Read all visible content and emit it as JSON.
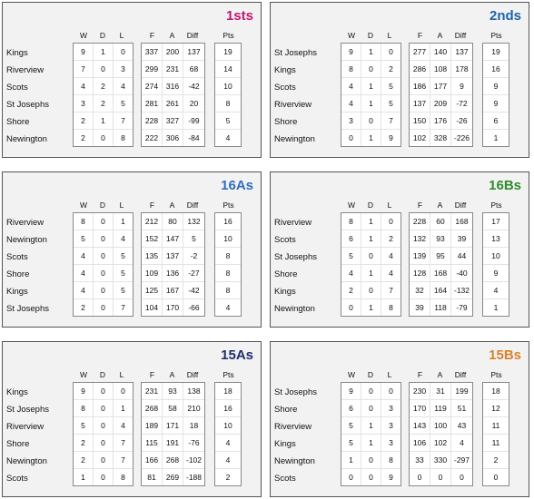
{
  "headers": {
    "w": "W",
    "d": "D",
    "l": "L",
    "f": "F",
    "a": "A",
    "diff": "Diff",
    "pts": "Pts"
  },
  "tables": [
    {
      "title": "1sts",
      "color": "#c0186f",
      "rows": [
        {
          "team": "Kings",
          "w": "9",
          "d": "1",
          "l": "0",
          "f": "337",
          "a": "200",
          "diff": "137",
          "pts": "19"
        },
        {
          "team": "Riverview",
          "w": "7",
          "d": "0",
          "l": "3",
          "f": "299",
          "a": "231",
          "diff": "68",
          "pts": "14"
        },
        {
          "team": "Scots",
          "w": "4",
          "d": "2",
          "l": "4",
          "f": "274",
          "a": "316",
          "diff": "-42",
          "pts": "10"
        },
        {
          "team": "St Josephs",
          "w": "3",
          "d": "2",
          "l": "5",
          "f": "281",
          "a": "261",
          "diff": "20",
          "pts": "8"
        },
        {
          "team": "Shore",
          "w": "2",
          "d": "1",
          "l": "7",
          "f": "228",
          "a": "327",
          "diff": "-99",
          "pts": "5"
        },
        {
          "team": "Newington",
          "w": "2",
          "d": "0",
          "l": "8",
          "f": "222",
          "a": "306",
          "diff": "-84",
          "pts": "4"
        }
      ]
    },
    {
      "title": "2nds",
      "color": "#1f63a8",
      "rows": [
        {
          "team": "St Josephs",
          "w": "9",
          "d": "1",
          "l": "0",
          "f": "277",
          "a": "140",
          "diff": "137",
          "pts": "19"
        },
        {
          "team": "Kings",
          "w": "8",
          "d": "0",
          "l": "2",
          "f": "286",
          "a": "108",
          "diff": "178",
          "pts": "16"
        },
        {
          "team": "Scots",
          "w": "4",
          "d": "1",
          "l": "5",
          "f": "186",
          "a": "177",
          "diff": "9",
          "pts": "9"
        },
        {
          "team": "Riverview",
          "w": "4",
          "d": "1",
          "l": "5",
          "f": "137",
          "a": "209",
          "diff": "-72",
          "pts": "9"
        },
        {
          "team": "Shore",
          "w": "3",
          "d": "0",
          "l": "7",
          "f": "150",
          "a": "176",
          "diff": "-26",
          "pts": "6"
        },
        {
          "team": "Newington",
          "w": "0",
          "d": "1",
          "l": "9",
          "f": "102",
          "a": "328",
          "diff": "-226",
          "pts": "1"
        }
      ]
    },
    {
      "title": "16As",
      "color": "#2d6fbe",
      "rows": [
        {
          "team": "Riverview",
          "w": "8",
          "d": "0",
          "l": "1",
          "f": "212",
          "a": "80",
          "diff": "132",
          "pts": "16"
        },
        {
          "team": "Newington",
          "w": "5",
          "d": "0",
          "l": "4",
          "f": "152",
          "a": "147",
          "diff": "5",
          "pts": "10"
        },
        {
          "team": "Scots",
          "w": "4",
          "d": "0",
          "l": "5",
          "f": "135",
          "a": "137",
          "diff": "-2",
          "pts": "8"
        },
        {
          "team": "Shore",
          "w": "4",
          "d": "0",
          "l": "5",
          "f": "109",
          "a": "136",
          "diff": "-27",
          "pts": "8"
        },
        {
          "team": "Kings",
          "w": "4",
          "d": "0",
          "l": "5",
          "f": "125",
          "a": "167",
          "diff": "-42",
          "pts": "8"
        },
        {
          "team": "St Josephs",
          "w": "2",
          "d": "0",
          "l": "7",
          "f": "104",
          "a": "170",
          "diff": "-66",
          "pts": "4"
        }
      ]
    },
    {
      "title": "16Bs",
      "color": "#2e8b2e",
      "rows": [
        {
          "team": "Riverview",
          "w": "8",
          "d": "1",
          "l": "0",
          "f": "228",
          "a": "60",
          "diff": "168",
          "pts": "17"
        },
        {
          "team": "Scots",
          "w": "6",
          "d": "1",
          "l": "2",
          "f": "132",
          "a": "93",
          "diff": "39",
          "pts": "13"
        },
        {
          "team": "St Josephs",
          "w": "5",
          "d": "0",
          "l": "4",
          "f": "139",
          "a": "95",
          "diff": "44",
          "pts": "10"
        },
        {
          "team": "Shore",
          "w": "4",
          "d": "1",
          "l": "4",
          "f": "128",
          "a": "168",
          "diff": "-40",
          "pts": "9"
        },
        {
          "team": "Kings",
          "w": "2",
          "d": "0",
          "l": "7",
          "f": "32",
          "a": "164",
          "diff": "-132",
          "pts": "4"
        },
        {
          "team": "Newington",
          "w": "0",
          "d": "1",
          "l": "8",
          "f": "39",
          "a": "118",
          "diff": "-79",
          "pts": "1"
        }
      ]
    },
    {
      "title": "15As",
      "color": "#1f2f6b",
      "rows": [
        {
          "team": "Kings",
          "w": "9",
          "d": "0",
          "l": "0",
          "f": "231",
          "a": "93",
          "diff": "138",
          "pts": "18"
        },
        {
          "team": "St Josephs",
          "w": "8",
          "d": "0",
          "l": "1",
          "f": "268",
          "a": "58",
          "diff": "210",
          "pts": "16"
        },
        {
          "team": "Riverview",
          "w": "5",
          "d": "0",
          "l": "4",
          "f": "189",
          "a": "171",
          "diff": "18",
          "pts": "10"
        },
        {
          "team": "Shore",
          "w": "2",
          "d": "0",
          "l": "7",
          "f": "115",
          "a": "191",
          "diff": "-76",
          "pts": "4"
        },
        {
          "team": "Newington",
          "w": "2",
          "d": "0",
          "l": "7",
          "f": "166",
          "a": "268",
          "diff": "-102",
          "pts": "4"
        },
        {
          "team": "Scots",
          "w": "1",
          "d": "0",
          "l": "8",
          "f": "81",
          "a": "269",
          "diff": "-188",
          "pts": "2"
        }
      ]
    },
    {
      "title": "15Bs",
      "color": "#d9822b",
      "rows": [
        {
          "team": "St Josephs",
          "w": "9",
          "d": "0",
          "l": "0",
          "f": "230",
          "a": "31",
          "diff": "199",
          "pts": "18"
        },
        {
          "team": "Shore",
          "w": "6",
          "d": "0",
          "l": "3",
          "f": "170",
          "a": "119",
          "diff": "51",
          "pts": "12"
        },
        {
          "team": "Riverview",
          "w": "5",
          "d": "1",
          "l": "3",
          "f": "143",
          "a": "100",
          "diff": "43",
          "pts": "11"
        },
        {
          "team": "Kings",
          "w": "5",
          "d": "1",
          "l": "3",
          "f": "106",
          "a": "102",
          "diff": "4",
          "pts": "11"
        },
        {
          "team": "Newington",
          "w": "1",
          "d": "0",
          "l": "8",
          "f": "33",
          "a": "330",
          "diff": "-297",
          "pts": "2"
        },
        {
          "team": "Scots",
          "w": "0",
          "d": "0",
          "l": "9",
          "f": "0",
          "a": "0",
          "diff": "0",
          "pts": "0"
        }
      ]
    }
  ]
}
